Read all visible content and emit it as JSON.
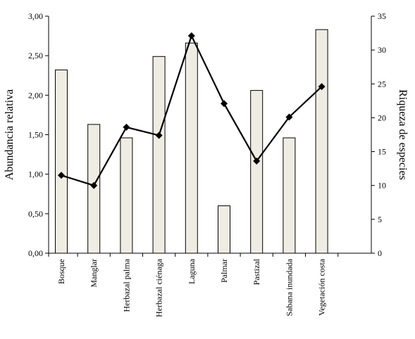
{
  "chart_data": {
    "type": "bar+line",
    "categories": [
      "Bosque",
      "Manglar",
      "Herbazal palma",
      "Herbazal ciénaga",
      "Laguna",
      "Palmar",
      "Pastizal",
      "Sabana inundada",
      "Vegetación costa"
    ],
    "series": [
      {
        "axis": "left",
        "type": "bar",
        "values": [
          2.32,
          1.63,
          1.46,
          2.49,
          2.66,
          0.6,
          2.06,
          1.46,
          2.83
        ],
        "color": "#efede3"
      },
      {
        "axis": "right",
        "type": "line",
        "marker": "diamond",
        "values": [
          11.5,
          10.0,
          18.6,
          17.4,
          32.1,
          22.1,
          13.6,
          20.1,
          24.6
        ],
        "color": "#000000"
      }
    ],
    "ylabel": "Abundancia relativa",
    "y2label": "Riqueza de especies",
    "ylim": [
      0,
      3
    ],
    "y2lim": [
      0,
      35
    ],
    "yticks": [
      "0,00",
      "0,50",
      "1,00",
      "1,50",
      "2,00",
      "2,50",
      "3,00"
    ],
    "y2ticks": [
      "0",
      "5",
      "10",
      "15",
      "20",
      "25",
      "30",
      "35"
    ],
    "grid": false,
    "legend": "none"
  }
}
